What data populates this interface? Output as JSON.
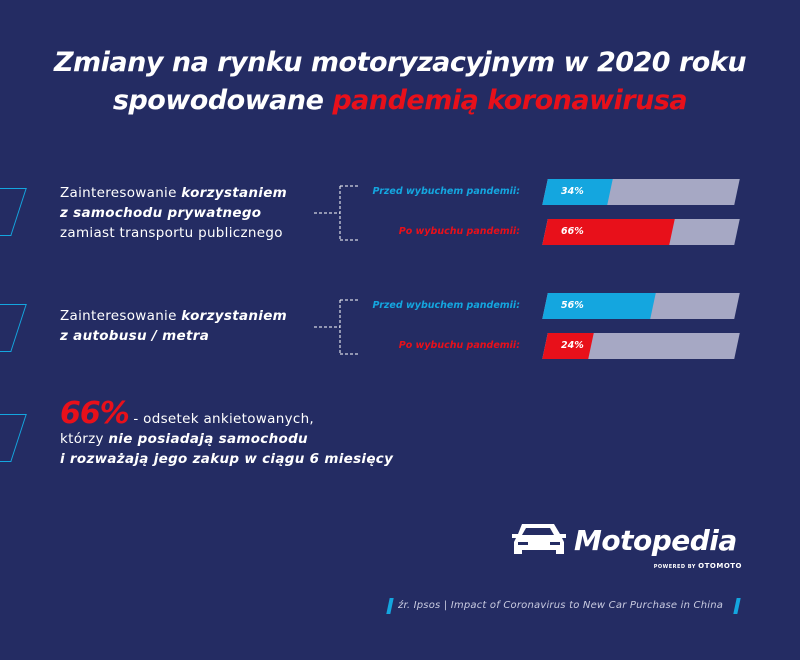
{
  "title": {
    "line1": "Zmiany na rynku motoryzacyjnym w 2020 roku",
    "line2_plain": "spowodowane ",
    "line2_highlight": "pandemią koronawirusa"
  },
  "colors": {
    "background": "#242c63",
    "before": "#14a6df",
    "after": "#e8101a",
    "remainder": "#a6a8c4"
  },
  "questions": [
    {
      "p1": "Zainteresowanie ",
      "b1": "korzystaniem",
      "b2": "z samochodu prywatnego",
      "p2": "zamiast transportu publicznego"
    },
    {
      "p1": "Zainteresowanie ",
      "b1": "korzystaniem",
      "b2": "z autobusu / metra",
      "p2": ""
    }
  ],
  "chart_data": {
    "type": "bar",
    "orientation": "horizontal",
    "unit": "%",
    "xlim": [
      0,
      100
    ],
    "groups": [
      {
        "bars": [
          {
            "label": "Przed wybuchem pandemii:",
            "value": 34,
            "text": "34%",
            "kind": "before"
          },
          {
            "label": "Po wybuchu pandemii:",
            "value": 66,
            "text": "66%",
            "kind": "after"
          }
        ]
      },
      {
        "bars": [
          {
            "label": "Przed wybuchem pandemii:",
            "value": 56,
            "text": "56%",
            "kind": "before"
          },
          {
            "label": "Po wybuchu pandemii:",
            "value": 24,
            "text": "24%",
            "kind": "after"
          }
        ]
      }
    ]
  },
  "stat": {
    "value": "66%",
    "text1": " - odsetek ankietowanych,",
    "text2a": "którzy ",
    "text2b": "nie posiadają samochodu",
    "text3": "i rozważają jego zakup w ciągu 6 miesięcy"
  },
  "logo": {
    "name": "Motopedia",
    "powered": "POWERED BY ",
    "brand": "OTOMOTO"
  },
  "source": "źr. Ipsos | Impact of Coronavirus to New Car Purchase in China"
}
